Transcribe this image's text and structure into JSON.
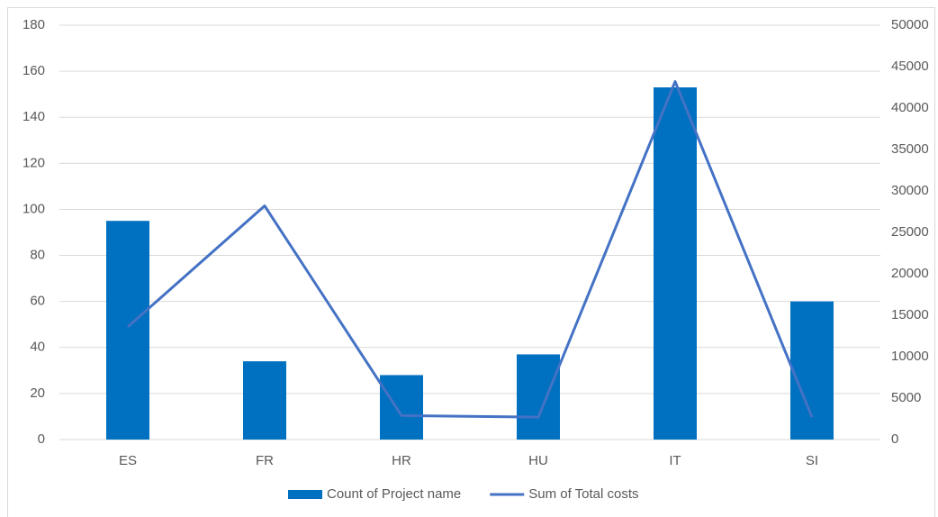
{
  "chart_data": {
    "type": "bar_line",
    "categories": [
      "ES",
      "FR",
      "HR",
      "HU",
      "IT",
      "SI"
    ],
    "series": [
      {
        "name": "Count of Project name",
        "color": "#0070c0",
        "type": "bar",
        "values": [
          95,
          34,
          28,
          37,
          153,
          60
        ]
      },
      {
        "name": "Sum of Total costs",
        "color": "#4472c4",
        "type": "line",
        "axis": "y2",
        "values": [
          13600,
          28200,
          2900,
          2700,
          43200,
          2700
        ]
      }
    ],
    "ylim": [
      0,
      180
    ],
    "yticks": [
      0,
      20,
      40,
      60,
      80,
      100,
      120,
      140,
      160,
      180
    ],
    "y2lim": [
      0,
      50000
    ],
    "y2ticks": [
      0,
      5000,
      10000,
      15000,
      20000,
      25000,
      30000,
      35000,
      40000,
      45000,
      50000
    ],
    "grid": true,
    "legend": "bottom"
  }
}
